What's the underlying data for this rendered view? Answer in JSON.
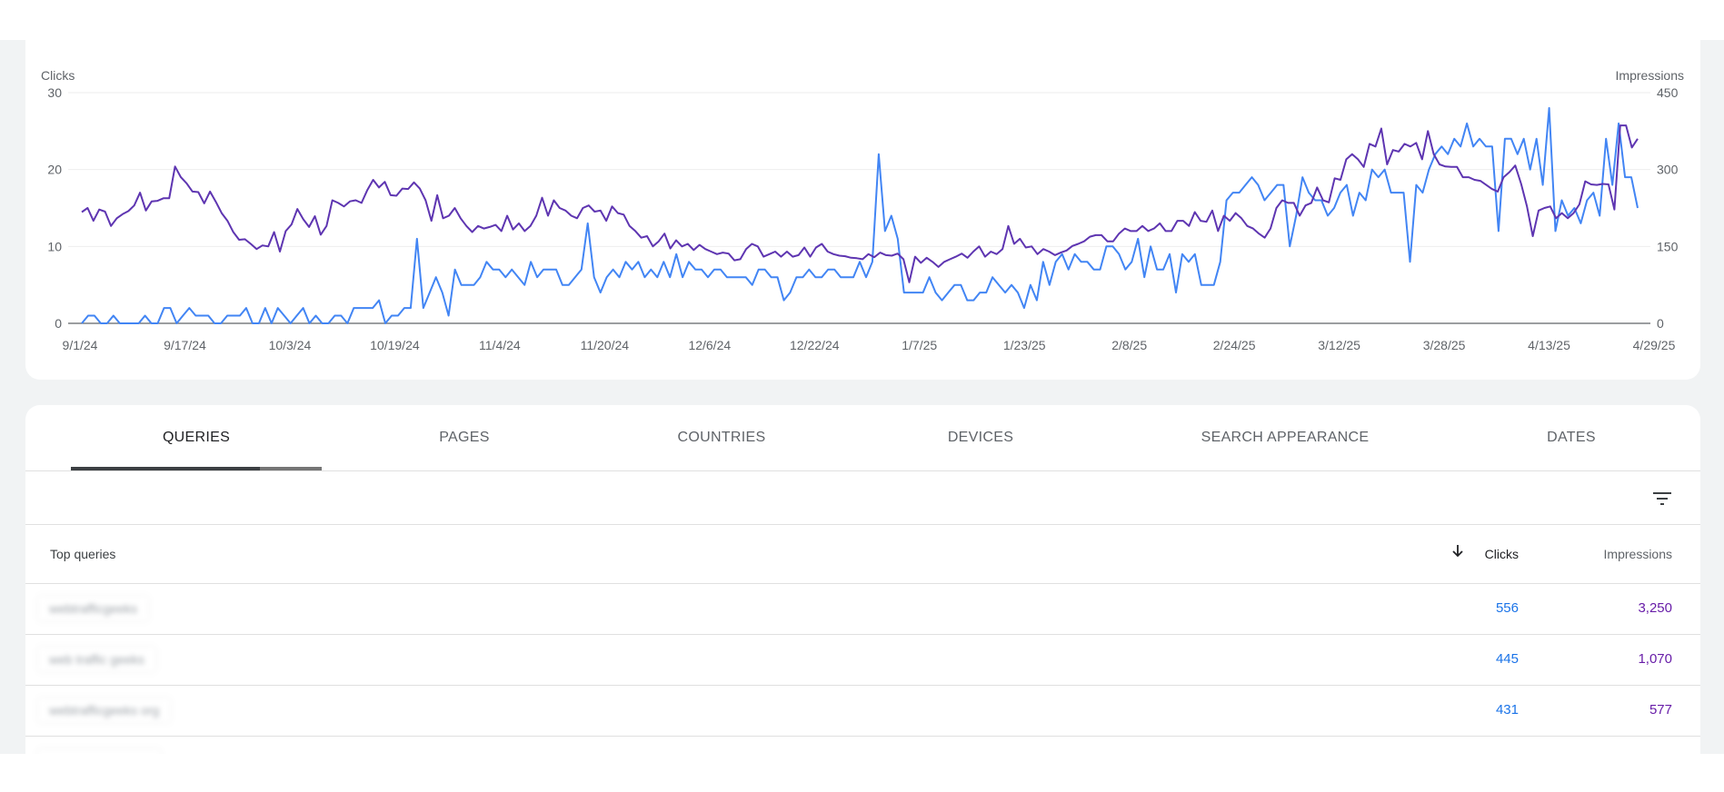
{
  "chart_data": {
    "type": "line",
    "left_axis_label": "Clicks",
    "right_axis_label": "Impressions",
    "left_ticks": [
      0,
      10,
      20,
      30
    ],
    "right_ticks": [
      0,
      150,
      300,
      450
    ],
    "left_ylim": [
      0,
      30
    ],
    "right_ylim": [
      0,
      450
    ],
    "x_tick_labels": [
      "9/1/24",
      "9/17/24",
      "10/3/24",
      "10/19/24",
      "11/4/24",
      "11/20/24",
      "12/6/24",
      "12/22/24",
      "1/7/25",
      "1/23/25",
      "2/8/25",
      "2/24/25",
      "3/12/25",
      "3/28/25",
      "4/13/25",
      "4/29/25"
    ],
    "series": [
      {
        "name": "Clicks",
        "axis": "left",
        "color": "#4285f4",
        "values": [
          0,
          1,
          1,
          0,
          0,
          1,
          0,
          0,
          0,
          0,
          1,
          0,
          0,
          2,
          2,
          0,
          1,
          2,
          1,
          1,
          1,
          0,
          0,
          1,
          1,
          1,
          2,
          0,
          0,
          2,
          0,
          2,
          1,
          0,
          1,
          2,
          0,
          1,
          0,
          0,
          1,
          1,
          0,
          2,
          2,
          2,
          2,
          3,
          0,
          1,
          1,
          2,
          2,
          11,
          2,
          4,
          6,
          4,
          1,
          7,
          5,
          5,
          5,
          6,
          8,
          7,
          7,
          6,
          7,
          6,
          5,
          8,
          6,
          7,
          7,
          7,
          5,
          5,
          6,
          7,
          13,
          6,
          4,
          6,
          7,
          6,
          8,
          7,
          8,
          6,
          7,
          6,
          8,
          6,
          9,
          6,
          8,
          7,
          7,
          6,
          7,
          7,
          6,
          6,
          6,
          6,
          5,
          7,
          7,
          6,
          6,
          3,
          4,
          6,
          6,
          7,
          6,
          6,
          7,
          7,
          6,
          6,
          6,
          8,
          6,
          8,
          22,
          12,
          14,
          11,
          4,
          4,
          4,
          4,
          6,
          4,
          3,
          4,
          5,
          5,
          3,
          3,
          4,
          4,
          6,
          5,
          4,
          5,
          4,
          2,
          5,
          3,
          8,
          5,
          8,
          9,
          7,
          9,
          8,
          8,
          7,
          7,
          10,
          10,
          9,
          7,
          8,
          11,
          6,
          10,
          7,
          7,
          9,
          4,
          9,
          8,
          9,
          5,
          5,
          5,
          8,
          16,
          17,
          17,
          18,
          19,
          18,
          16,
          17,
          18,
          18,
          10,
          14,
          19,
          17,
          16,
          16,
          14,
          15,
          17,
          18,
          14,
          17,
          16,
          20,
          19,
          20,
          17,
          17,
          17,
          8,
          18,
          17,
          20,
          22,
          23,
          22,
          24,
          23,
          26,
          23,
          24,
          23,
          23,
          12,
          24,
          24,
          22,
          24,
          20,
          24,
          18,
          28,
          12,
          16,
          14,
          15,
          13,
          16,
          17,
          14,
          24,
          18,
          26,
          19,
          19,
          15
        ]
      },
      {
        "name": "Impressions",
        "axis": "right",
        "color": "#5e35b1",
        "values": [
          217,
          225,
          200,
          222,
          218,
          190,
          205,
          213,
          219,
          230,
          255,
          220,
          238,
          239,
          244,
          244,
          306,
          285,
          273,
          257,
          256,
          234,
          257,
          237,
          215,
          200,
          178,
          163,
          164,
          155,
          145,
          152,
          150,
          178,
          140,
          180,
          193,
          223,
          203,
          188,
          209,
          173,
          190,
          240,
          235,
          228,
          238,
          240,
          235,
          260,
          280,
          265,
          276,
          250,
          249,
          263,
          262,
          275,
          263,
          240,
          200,
          250,
          205,
          210,
          225,
          205,
          190,
          178,
          190,
          185,
          188,
          192,
          180,
          210,
          183,
          195,
          180,
          190,
          210,
          245,
          210,
          240,
          225,
          220,
          210,
          205,
          225,
          230,
          218,
          220,
          200,
          228,
          215,
          212,
          190,
          180,
          167,
          170,
          150,
          160,
          175,
          146,
          162,
          150,
          155,
          143,
          153,
          145,
          140,
          135,
          138,
          136,
          123,
          125,
          145,
          155,
          150,
          130,
          135,
          140,
          130,
          140,
          130,
          133,
          148,
          130,
          148,
          155,
          140,
          135,
          132,
          131,
          128,
          127,
          125,
          135,
          129,
          138,
          133,
          132,
          136,
          125,
          80,
          130,
          118,
          128,
          120,
          110,
          120,
          125,
          130,
          136,
          128,
          140,
          150,
          130,
          140,
          135,
          145,
          190,
          155,
          165,
          148,
          150,
          135,
          145,
          140,
          133,
          138,
          142,
          151,
          155,
          160,
          169,
          172,
          172,
          160,
          160,
          175,
          185,
          180,
          180,
          190,
          180,
          185,
          195,
          180,
          180,
          200,
          200,
          190,
          217,
          200,
          198,
          220,
          180,
          210,
          200,
          215,
          205,
          190,
          185,
          175,
          167,
          185,
          225,
          240,
          235,
          235,
          210,
          230,
          235,
          265,
          240,
          236,
          283,
          280,
          320,
          330,
          320,
          305,
          350,
          345,
          380,
          310,
          338,
          335,
          350,
          345,
          352,
          320,
          375,
          330,
          310,
          306,
          305,
          305,
          285,
          285,
          280,
          278,
          270,
          262,
          257,
          285,
          295,
          308,
          272,
          228,
          170,
          220,
          225,
          228,
          205,
          215,
          205,
          215,
          232,
          277,
          271,
          270,
          272,
          271,
          222,
          386,
          386,
          343,
          360
        ]
      }
    ],
    "grid": true,
    "legend": "none"
  },
  "tabs": [
    {
      "label": "QUERIES"
    },
    {
      "label": "PAGES"
    },
    {
      "label": "COUNTRIES"
    },
    {
      "label": "DEVICES"
    },
    {
      "label": "SEARCH APPEARANCE"
    },
    {
      "label": "DATES"
    }
  ],
  "table": {
    "headers": {
      "queries": "Top queries",
      "clicks": "Clicks",
      "impressions": "Impressions"
    },
    "rows": [
      {
        "query": "webtrafficgeeks",
        "clicks": "556",
        "impressions": "3,250"
      },
      {
        "query": "web traffic geeks",
        "clicks": "445",
        "impressions": "1,070"
      },
      {
        "query": "webtrafficgeeks org",
        "clicks": "431",
        "impressions": "577"
      }
    ]
  },
  "icons": {
    "filter": "filter-icon",
    "sort": "arrow-down-icon"
  },
  "colors": {
    "clicks": "#1a73e8",
    "impressions": "#681da8",
    "line_clicks": "#4285f4",
    "line_impressions": "#5e35b1"
  }
}
